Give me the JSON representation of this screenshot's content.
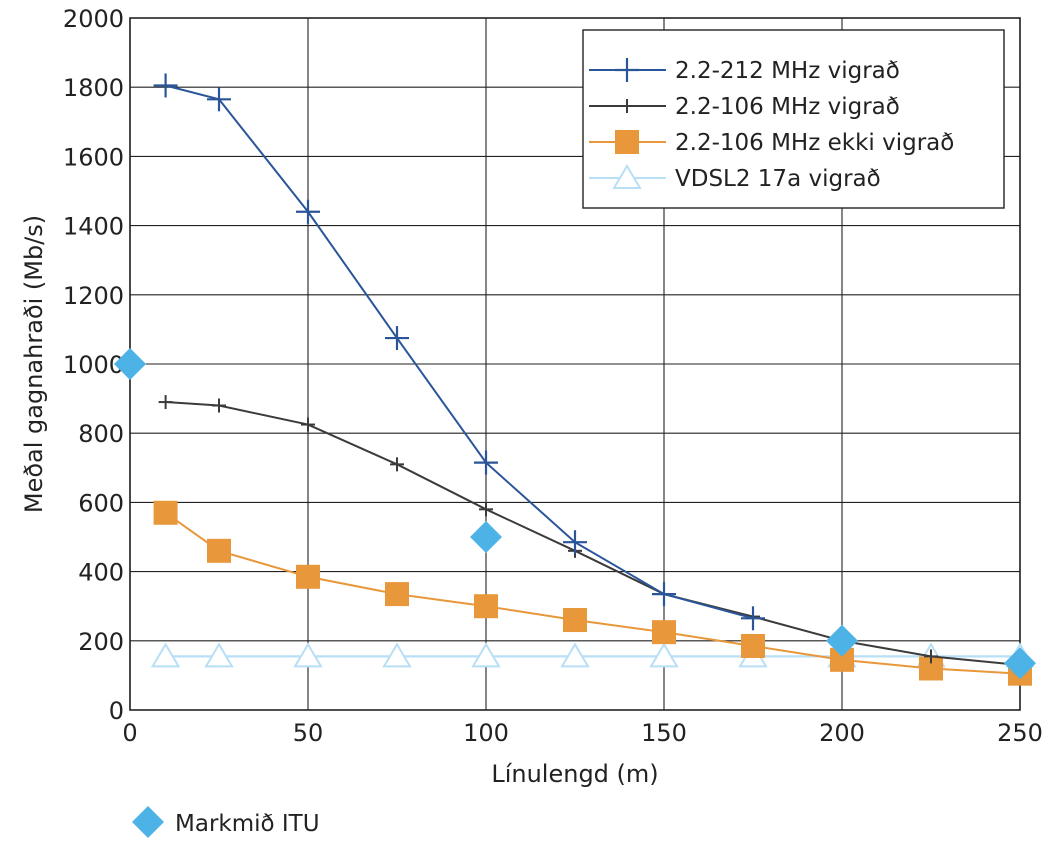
{
  "chart_data": {
    "type": "line",
    "xlabel": "Línulengd (m)",
    "ylabel": "Meðal gagnahraði (Mb/s)",
    "xlim": [
      0,
      250
    ],
    "ylim": [
      0,
      2000
    ],
    "xticks": [
      0,
      50,
      100,
      150,
      200,
      250
    ],
    "yticks": [
      0,
      200,
      400,
      600,
      800,
      1000,
      1200,
      1400,
      1600,
      1800,
      2000
    ],
    "grid": true,
    "legend_position": "top-right",
    "series": [
      {
        "name": "2.2-212 MHz vigrað",
        "color": "#2a5599",
        "marker": "plus-large",
        "x": [
          10,
          25,
          50,
          75,
          100,
          125,
          150,
          175
        ],
        "y": [
          1805,
          1765,
          1440,
          1075,
          715,
          485,
          335,
          265
        ]
      },
      {
        "name": "2.2-106 MHz vigrað",
        "color": "#3b3b3b",
        "marker": "plus-small",
        "x": [
          10,
          25,
          50,
          75,
          100,
          125,
          150,
          175,
          200,
          225,
          250
        ],
        "y": [
          890,
          880,
          825,
          710,
          580,
          460,
          335,
          270,
          200,
          155,
          130
        ]
      },
      {
        "name": "2.2-106 MHz ekki vigrað",
        "color": "#e8973a",
        "marker": "square",
        "x": [
          10,
          25,
          50,
          75,
          100,
          125,
          150,
          175,
          200,
          225,
          250
        ],
        "y": [
          570,
          460,
          385,
          335,
          300,
          260,
          225,
          185,
          145,
          120,
          105
        ]
      },
      {
        "name": "VDSL2 17a vigrað",
        "color": "#b8dff5",
        "marker": "triangle",
        "x": [
          10,
          25,
          50,
          75,
          100,
          125,
          150,
          175,
          200,
          225,
          250
        ],
        "y": [
          155,
          155,
          155,
          155,
          155,
          155,
          155,
          155,
          155,
          155,
          155
        ]
      }
    ],
    "targets": {
      "name": "Markmið ITU",
      "color": "#4db3e6",
      "marker": "diamond",
      "x": [
        0,
        100,
        200,
        250
      ],
      "y": [
        1000,
        500,
        200,
        135
      ]
    }
  }
}
